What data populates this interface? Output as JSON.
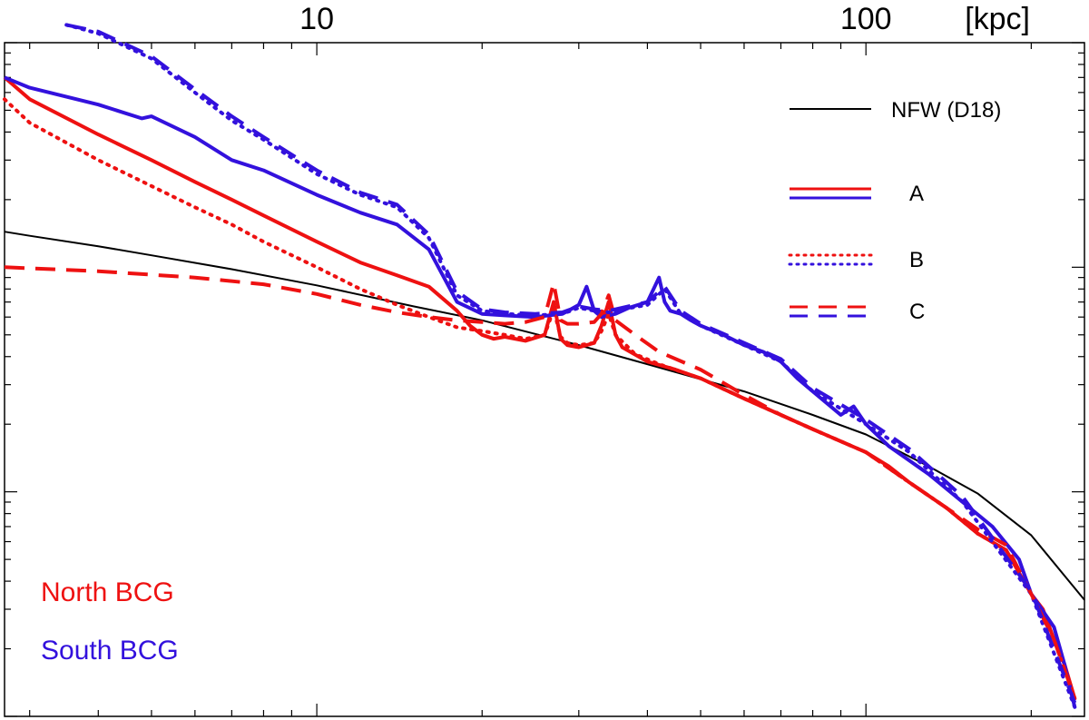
{
  "chart_data": {
    "type": "line",
    "title": "",
    "xlabel": "",
    "ylabel": "",
    "x_unit_label": "[kpc]",
    "x_scale": "log",
    "y_scale": "log",
    "xlim": [
      2.7,
      250
    ],
    "ylim": [
      1,
      1000
    ],
    "x_ticks": [
      10,
      100
    ],
    "x_tick_labels": [
      "10",
      "100"
    ],
    "grid": false,
    "legend_placement": "top-right",
    "legend": [
      {
        "label": "NFW (D18)",
        "style": "solid",
        "colors": [
          "#000000"
        ]
      },
      {
        "label": "A",
        "style": "solid",
        "colors": [
          "#ee1111",
          "#3311dd"
        ]
      },
      {
        "label": "B",
        "style": "dotted",
        "colors": [
          "#ee1111",
          "#3311dd"
        ]
      },
      {
        "label": "C",
        "style": "dashed",
        "colors": [
          "#ee1111",
          "#3311dd"
        ]
      }
    ],
    "annotations": [
      {
        "text": "North BCG",
        "color": "#ee1111"
      },
      {
        "text": "South BCG",
        "color": "#3311dd"
      }
    ],
    "colors": {
      "north": "#ee1111",
      "south": "#3311dd",
      "nfw": "#000000"
    },
    "series": [
      {
        "group": "NFW",
        "style": "solid",
        "color": "#000000",
        "x": [
          2.7,
          3,
          4,
          5,
          7,
          10,
          15,
          20,
          30,
          40,
          60,
          80,
          100,
          130,
          160,
          200,
          250
        ],
        "y": [
          144,
          138,
          124,
          113,
          98,
          83,
          67,
          58,
          45,
          37,
          28,
          22,
          18,
          13,
          9.8,
          6.4,
          3.3
        ]
      },
      {
        "group": "NFW",
        "style": "solid",
        "color": "#000000",
        "x": [
          2.7
        ],
        "y": [
          144
        ]
      },
      {
        "group": "North A",
        "style": "solid",
        "color": "#ee1111",
        "x": [
          2.7,
          3,
          4,
          5,
          6,
          7,
          8,
          10,
          12,
          14,
          16,
          18,
          19,
          20,
          21,
          22,
          24,
          26,
          27,
          27.8,
          28.6,
          30,
          32,
          33,
          34,
          35,
          36,
          40,
          45,
          50,
          60,
          70,
          80,
          100,
          110,
          120,
          140,
          160,
          180,
          200,
          210,
          220,
          230,
          240
        ],
        "y": [
          700,
          560,
          390,
          300,
          240,
          200,
          170,
          130,
          105,
          92,
          82,
          64,
          55,
          50,
          48,
          49,
          47,
          50,
          70,
          48,
          45,
          44,
          46,
          55,
          70,
          50,
          44,
          38,
          35,
          32,
          26,
          22,
          19,
          15,
          13,
          11,
          8.5,
          6.5,
          5.5,
          3.5,
          3,
          2.2,
          1.7,
          1.2
        ]
      },
      {
        "group": "South A",
        "style": "solid",
        "color": "#3311dd",
        "x": [
          2.7,
          3,
          4,
          4.8,
          5,
          6,
          7,
          8,
          10,
          12,
          14,
          16,
          18,
          20,
          22,
          25,
          28,
          30,
          31,
          32,
          33,
          35,
          37,
          40,
          42,
          43,
          44,
          46,
          48,
          50,
          55,
          60,
          65,
          70,
          75,
          80,
          90,
          95,
          100,
          110,
          130,
          150,
          170,
          190,
          200,
          220,
          230,
          240
        ],
        "y": [
          700,
          630,
          530,
          460,
          470,
          380,
          300,
          270,
          210,
          175,
          155,
          120,
          70,
          62,
          61,
          60,
          62,
          68,
          82,
          64,
          60,
          62,
          66,
          70,
          90,
          70,
          64,
          62,
          58,
          55,
          50,
          45,
          42,
          38,
          32,
          28,
          22,
          24,
          20,
          16,
          12,
          9,
          7,
          5,
          3.5,
          2.5,
          1.7,
          1.1
        ]
      },
      {
        "group": "North B",
        "style": "dotted",
        "color": "#ee1111",
        "x": [
          2.7,
          3,
          4,
          5,
          6,
          7,
          8,
          10,
          12,
          14,
          16,
          18,
          20,
          22,
          24,
          26,
          27,
          27.8,
          28.6,
          30,
          32,
          33,
          34,
          35,
          38,
          42,
          50,
          60,
          70,
          80,
          100,
          120,
          140,
          160,
          180,
          200,
          220,
          240
        ],
        "y": [
          560,
          440,
          300,
          230,
          185,
          155,
          130,
          100,
          80,
          68,
          60,
          54,
          52,
          50,
          48,
          50,
          65,
          49,
          46,
          45,
          46,
          52,
          62,
          50,
          41,
          37,
          32,
          26,
          22,
          19,
          15,
          11,
          8.5,
          6.5,
          5.5,
          3.5,
          2.2,
          1.2
        ]
      },
      {
        "group": "South B",
        "style": "dotted",
        "color": "#3311dd",
        "x": [
          3.5,
          4,
          5,
          6,
          7,
          8,
          10,
          12,
          14,
          16,
          18,
          20,
          22,
          25,
          28,
          30,
          32,
          34,
          36,
          40,
          43,
          46,
          50,
          60,
          70,
          80,
          100,
          120,
          150,
          200,
          240
        ],
        "y": [
          1200,
          1100,
          850,
          600,
          450,
          370,
          260,
          210,
          185,
          135,
          75,
          64,
          62,
          61,
          62,
          66,
          64,
          63,
          65,
          68,
          80,
          62,
          55,
          45,
          38,
          28,
          20,
          15,
          9,
          3.5,
          1.1
        ]
      },
      {
        "group": "North C",
        "style": "dashed",
        "color": "#ee1111",
        "x": [
          2.7,
          4,
          6,
          8,
          10,
          12,
          14,
          16,
          18,
          20,
          22,
          24,
          26,
          27,
          27.8,
          28.6,
          30,
          32,
          33,
          34,
          35,
          38,
          42,
          50,
          60,
          70,
          80,
          100,
          120,
          140,
          160,
          180,
          200,
          220,
          240
        ],
        "y": [
          100,
          96,
          90,
          84,
          76,
          68,
          63,
          60,
          58,
          57,
          56,
          57,
          60,
          85,
          58,
          56,
          56,
          57,
          62,
          75,
          58,
          50,
          42,
          35,
          27,
          22,
          19,
          15,
          11,
          8.5,
          6.8,
          5.8,
          3.5,
          2.2,
          1.2
        ]
      },
      {
        "group": "South C",
        "style": "dashed",
        "color": "#3311dd",
        "x": [
          3.5,
          4,
          5,
          6,
          7,
          8,
          10,
          12,
          14,
          16,
          18,
          20,
          22,
          25,
          28,
          30,
          32,
          34,
          36,
          40,
          43,
          46,
          50,
          60,
          70,
          80,
          100,
          120,
          150,
          200,
          240
        ],
        "y": [
          1200,
          1120,
          870,
          620,
          470,
          380,
          270,
          215,
          190,
          140,
          78,
          65,
          63,
          62,
          63,
          67,
          65,
          64,
          66,
          70,
          82,
          64,
          56,
          46,
          39,
          29,
          21,
          15.5,
          9.5,
          3.6,
          1.15
        ]
      }
    ]
  }
}
